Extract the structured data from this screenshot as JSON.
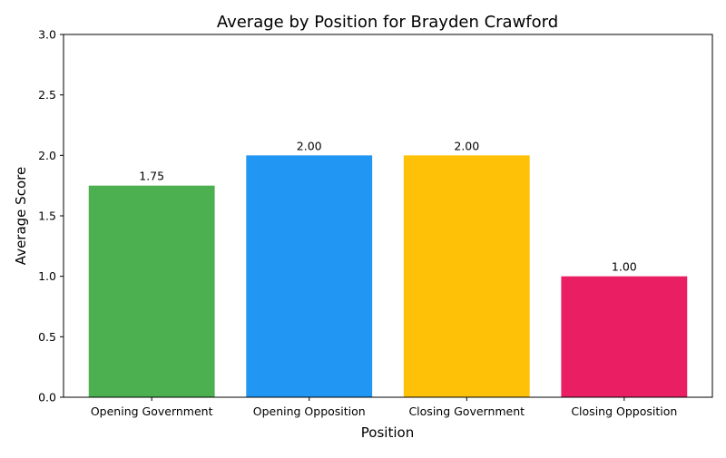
{
  "chart_data": {
    "type": "bar",
    "title": "Average by Position for Brayden Crawford",
    "xlabel": "Position",
    "ylabel": "Average Score",
    "categories": [
      "Opening Government",
      "Opening Opposition",
      "Closing Government",
      "Closing Opposition"
    ],
    "values": [
      1.75,
      2.0,
      2.0,
      1.0
    ],
    "data_labels": [
      "1.75",
      "2.00",
      "2.00",
      "1.00"
    ],
    "colors": [
      "#4caf50",
      "#2196f3",
      "#ffc107",
      "#e91e63"
    ],
    "ylim": [
      0,
      3
    ],
    "yticks": [
      0,
      0.5,
      1.0,
      1.5,
      2.0,
      2.5,
      3.0
    ],
    "ytick_labels": [
      "0.0",
      "0.5",
      "1.0",
      "1.5",
      "2.0",
      "2.5",
      "3.0"
    ],
    "grid": false,
    "legend": "none"
  }
}
